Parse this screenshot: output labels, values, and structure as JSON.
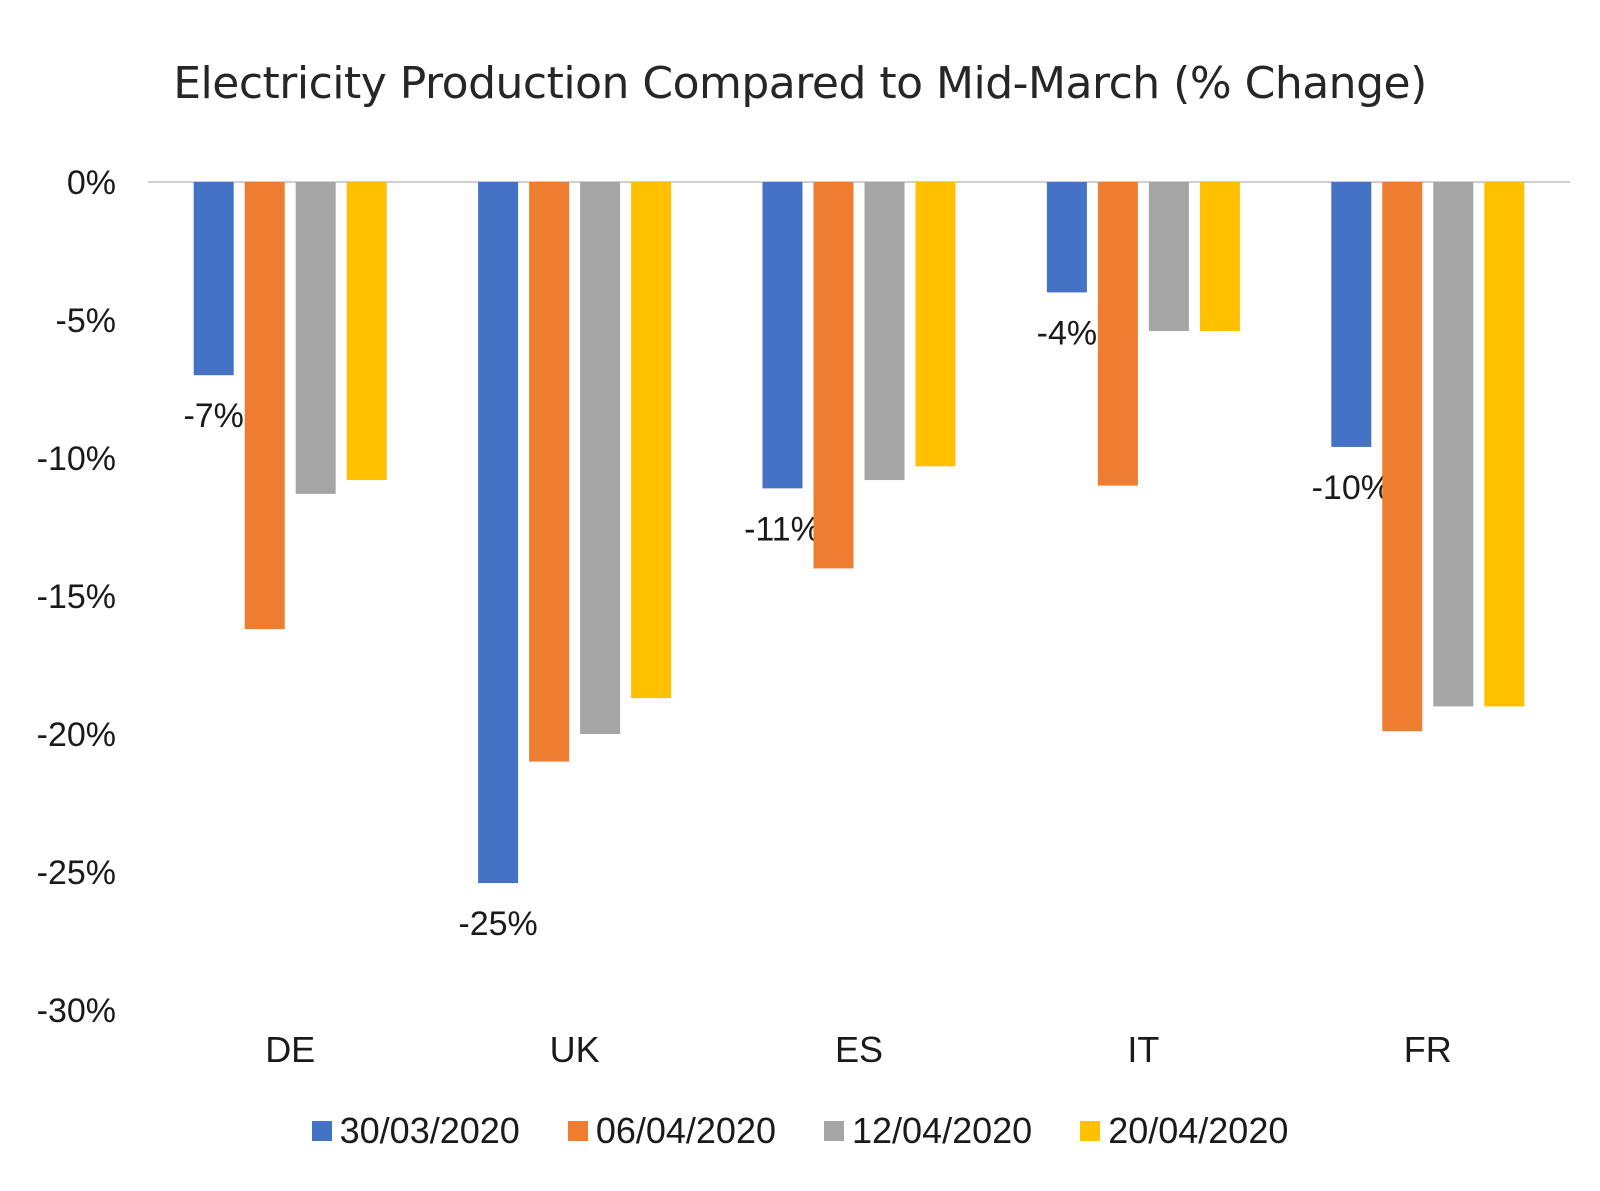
{
  "chart_data": {
    "type": "bar",
    "title": "Electricity Production Compared to Mid-March (% Change)",
    "xlabel": "",
    "ylabel": "",
    "categories": [
      "DE",
      "UK",
      "ES",
      "IT",
      "FR"
    ],
    "ylim": [
      -30,
      0
    ],
    "yticks": [
      0,
      -5,
      -10,
      -15,
      -20,
      -25,
      -30
    ],
    "ytick_labels": [
      "0%",
      "-5%",
      "-10%",
      "-15%",
      "-20%",
      "-25%",
      "-30%"
    ],
    "grid": false,
    "legend_position": "bottom",
    "series": [
      {
        "name": "30/03/2020",
        "color": "#4472C4",
        "values": [
          -7,
          -25.4,
          -11.1,
          -4,
          -9.6
        ],
        "data_labels": [
          "-7%",
          "-25%",
          "-11%",
          "-4%",
          "-10%"
        ]
      },
      {
        "name": "06/04/2020",
        "color": "#ED7D31",
        "values": [
          -16.2,
          -21,
          -14,
          -11,
          -19.9
        ]
      },
      {
        "name": "12/04/2020",
        "color": "#A5A5A5",
        "values": [
          -11.3,
          -20,
          -10.8,
          -5.4,
          -19
        ]
      },
      {
        "name": "20/04/2020",
        "color": "#FFC000",
        "values": [
          -10.8,
          -18.7,
          -10.3,
          -5.4,
          -19
        ]
      }
    ]
  }
}
